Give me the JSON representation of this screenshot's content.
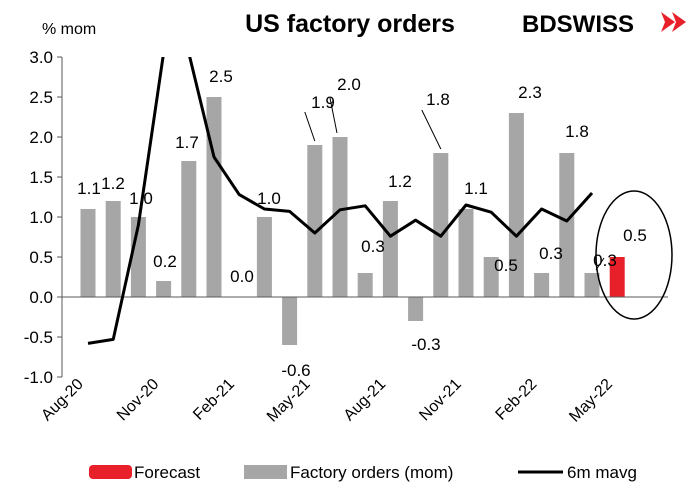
{
  "colors": {
    "bar": "#a6a6a6",
    "forecast": "#e8202a",
    "mavg": "#000000",
    "logo_red": "#e8202a",
    "logo_gray": "#7f7f7f",
    "background": "#ffffff"
  },
  "logo": {
    "part1": "BD",
    "part2": "SWISS",
    "icon": "brand-arrows-icon"
  },
  "legend": {
    "forecast": "Forecast",
    "bars": "Factory orders (mom)",
    "mavg": "6m mavg"
  },
  "chart_data": {
    "type": "bar",
    "title": "US factory orders",
    "ylabel": "% mom",
    "xlabel": "",
    "ylim": [
      -1.0,
      3.0
    ],
    "yticks": [
      "-1.0",
      "-0.5",
      "0.0",
      "0.5",
      "1.0",
      "1.5",
      "2.0",
      "2.5",
      "3.0"
    ],
    "grid": false,
    "legend_position": "bottom",
    "categories": [
      "Aug-20",
      "Sep-20",
      "Oct-20",
      "Nov-20",
      "Dec-20",
      "Jan-21",
      "Feb-21",
      "Mar-21",
      "Apr-21",
      "May-21",
      "Jun-21",
      "Jul-21",
      "Aug-21",
      "Sep-21",
      "Oct-21",
      "Nov-21",
      "Dec-21",
      "Jan-22",
      "Feb-22",
      "Mar-22",
      "Apr-22",
      "May-22"
    ],
    "x_tick_labels": [
      "Aug-20",
      "Nov-20",
      "Feb-21",
      "May-21",
      "Aug-21",
      "Nov-21",
      "Feb-22",
      "May-22"
    ],
    "series": [
      {
        "name": "Factory orders (mom)",
        "type": "bar",
        "values": [
          1.1,
          1.2,
          1.0,
          0.2,
          1.7,
          2.5,
          0.0,
          1.0,
          -0.6,
          1.9,
          2.0,
          0.3,
          1.2,
          -0.3,
          1.8,
          1.1,
          0.5,
          2.3,
          0.3,
          1.8,
          0.3,
          null
        ],
        "labels": [
          "1.1",
          "1.2",
          "1.0",
          "0.2",
          "1.7",
          "2.5",
          "0.0",
          "1.0",
          "-0.6",
          "1.9",
          "2.0",
          "0.3",
          "1.2",
          "-0.3",
          "1.8",
          "1.1",
          "0.5",
          "2.3",
          "0.3",
          "1.8",
          "0.3",
          ""
        ]
      },
      {
        "name": "Forecast",
        "type": "bar",
        "values": [
          null,
          null,
          null,
          null,
          null,
          null,
          null,
          null,
          null,
          null,
          null,
          null,
          null,
          null,
          null,
          null,
          null,
          null,
          null,
          null,
          null,
          0.5
        ],
        "labels": [
          "",
          "",
          "",
          "",
          "",
          "",
          "",
          "",
          "",
          "",
          "",
          "",
          "",
          "",
          "",
          "",
          "",
          "",
          "",
          "",
          "",
          "0.5"
        ]
      },
      {
        "name": "6m mavg",
        "type": "line",
        "values": [
          -0.58,
          -0.53,
          0.9,
          3.05,
          3.05,
          1.75,
          1.28,
          1.1,
          1.07,
          0.8,
          1.09,
          1.14,
          0.76,
          0.96,
          0.76,
          1.15,
          1.06,
          0.76,
          1.1,
          0.95,
          1.3,
          null
        ]
      }
    ]
  }
}
